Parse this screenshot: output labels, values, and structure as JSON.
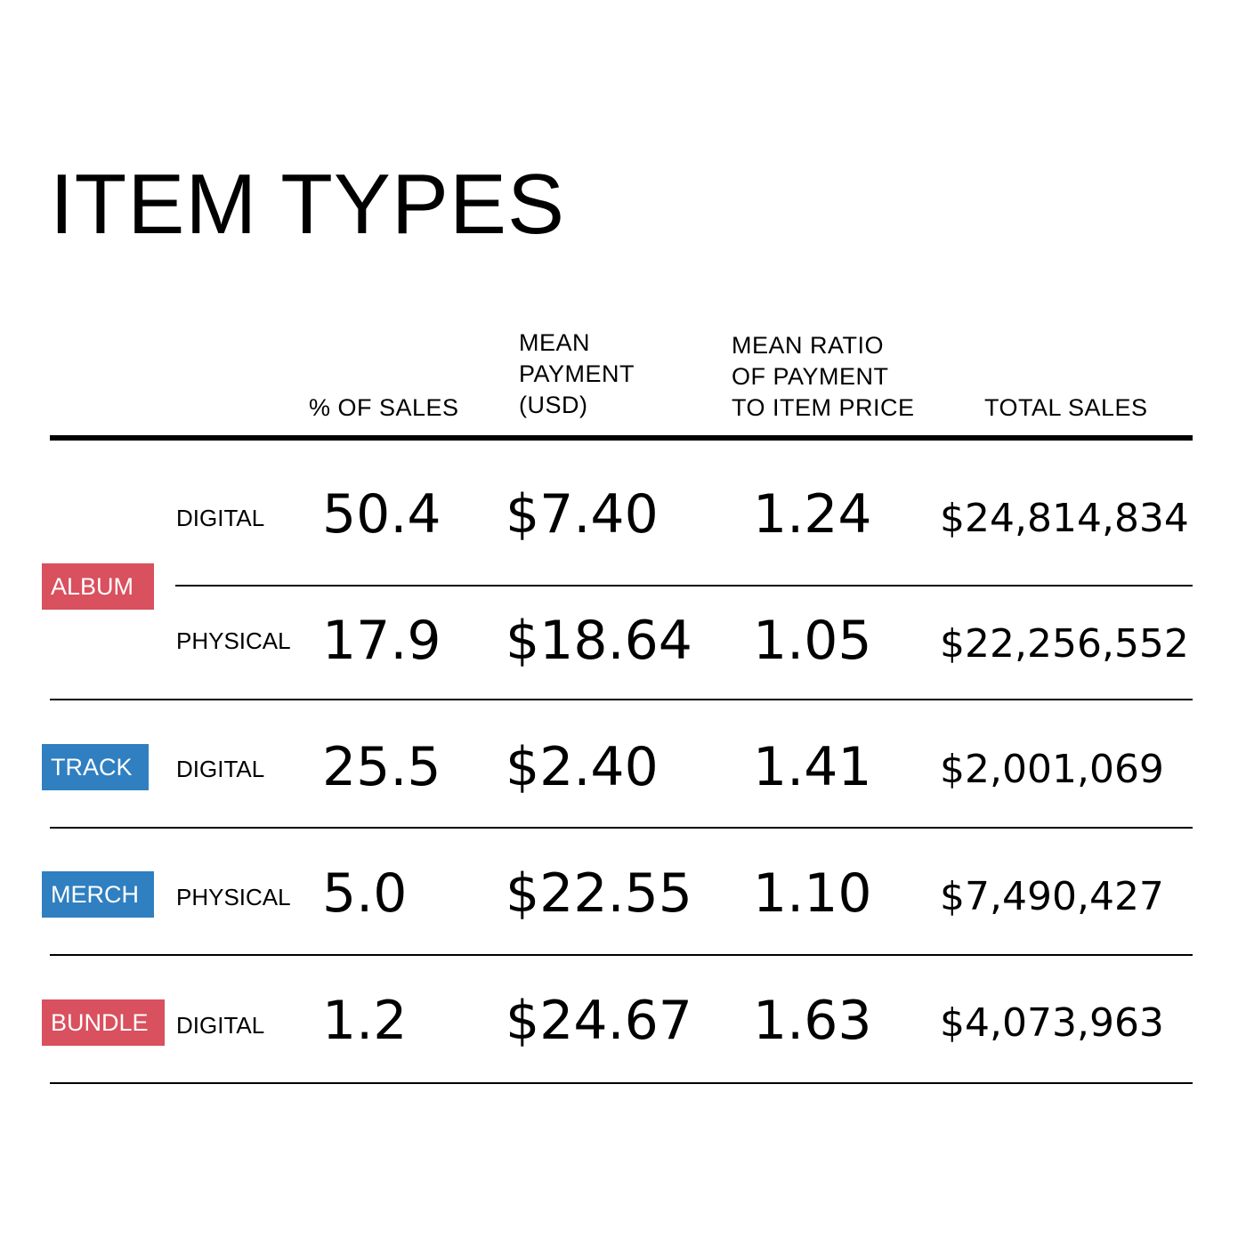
{
  "title": "ITEM TYPES",
  "colors": {
    "album": "#d9505e",
    "bundle": "#d9505e",
    "track": "#2f7fc1",
    "merch": "#2f7fc1"
  },
  "chart_data": {
    "type": "table",
    "title": "ITEM TYPES",
    "columns": [
      [
        "% OF SALES"
      ],
      [
        "MEAN",
        "PAYMENT",
        "(USD)"
      ],
      [
        "MEAN RATIO",
        "OF PAYMENT",
        "TO ITEM PRICE"
      ],
      [
        "TOTAL SALES"
      ]
    ],
    "groups": [
      {
        "label": "ALBUM",
        "color": "#d9505e",
        "rows": [
          {
            "type": "DIGITAL",
            "pct": "50.4",
            "mean_payment": "$7.40",
            "ratio": "1.24",
            "total": "$24,814,834"
          },
          {
            "type": "PHYSICAL",
            "pct": "17.9",
            "mean_payment": "$18.64",
            "ratio": "1.05",
            "total": "$22,256,552"
          }
        ]
      },
      {
        "label": "TRACK",
        "color": "#2f7fc1",
        "rows": [
          {
            "type": "DIGITAL",
            "pct": "25.5",
            "mean_payment": "$2.40",
            "ratio": "1.41",
            "total": "$2,001,069"
          }
        ]
      },
      {
        "label": "MERCH",
        "color": "#2f7fc1",
        "rows": [
          {
            "type": "PHYSICAL",
            "pct": "5.0",
            "mean_payment": "$22.55",
            "ratio": "1.10",
            "total": "$7,490,427"
          }
        ]
      },
      {
        "label": "BUNDLE",
        "color": "#d9505e",
        "rows": [
          {
            "type": "DIGITAL",
            "pct": "1.2",
            "mean_payment": "$24.67",
            "ratio": "1.63",
            "total": "$4,073,963"
          }
        ]
      }
    ]
  }
}
